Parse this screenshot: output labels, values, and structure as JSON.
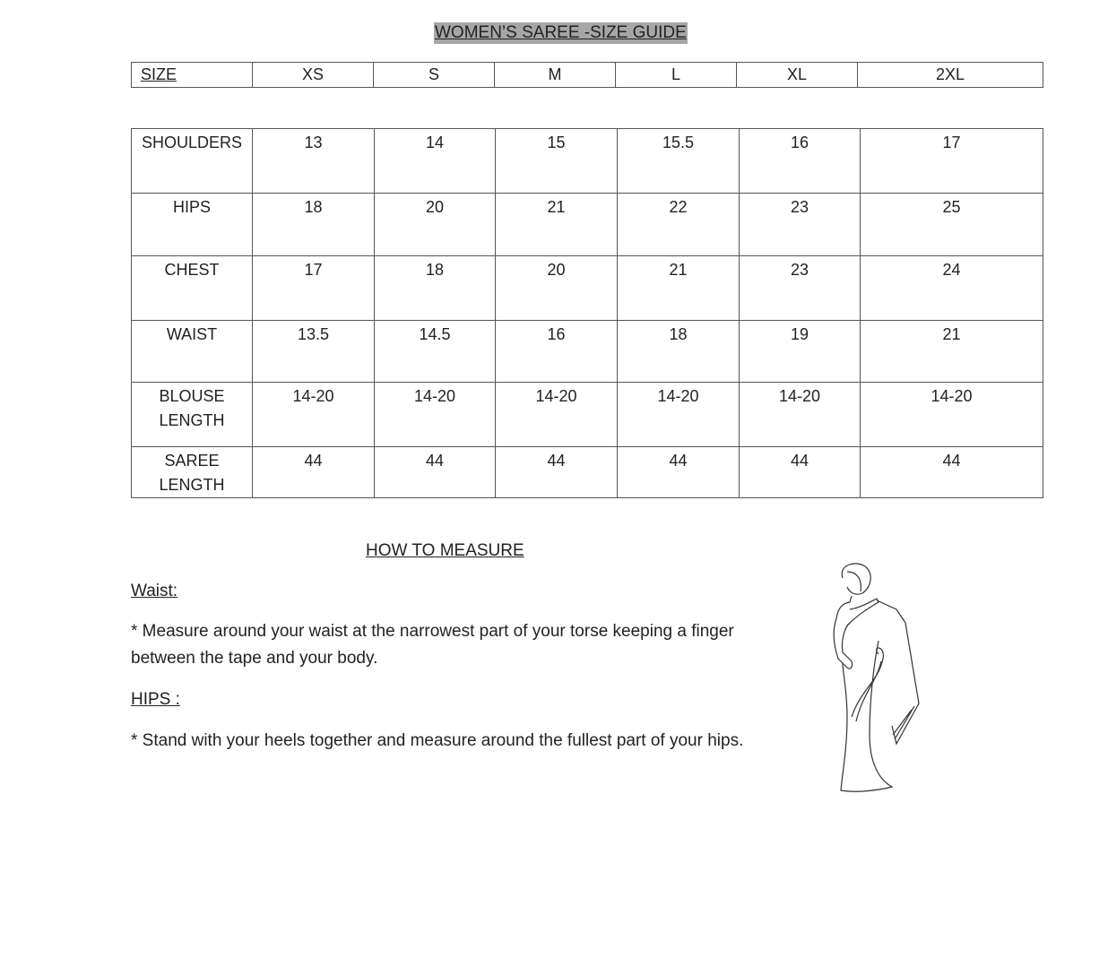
{
  "title": "WOMEN’S SAREE -SIZE GUIDE",
  "size_header": {
    "label": "SIZE",
    "sizes": [
      "XS",
      "S",
      "M",
      "L",
      "XL",
      "2XL"
    ]
  },
  "measurements": [
    {
      "label": "SHOULDERS",
      "values": [
        "13",
        "14",
        "15",
        "15.5",
        "16",
        "17"
      ]
    },
    {
      "label": "HIPS",
      "values": [
        "18",
        "20",
        "21",
        "22",
        "23",
        "25"
      ]
    },
    {
      "label": "CHEST",
      "values": [
        "17",
        "18",
        "20",
        "21",
        "23",
        "24"
      ]
    },
    {
      "label": "WAIST",
      "values": [
        "13.5",
        "14.5",
        "16",
        "18",
        "19",
        "21"
      ]
    },
    {
      "label": "BLOUSE LENGTH",
      "values": [
        "14-20",
        "14-20",
        "14-20",
        "14-20",
        "14-20",
        "14-20"
      ]
    },
    {
      "label": "SAREE LENGTH",
      "values": [
        "44",
        "44",
        "44",
        "44",
        "44",
        "44"
      ]
    }
  ],
  "how_to": {
    "heading": "HOW TO MEASURE",
    "waist_heading": "Waist:",
    "waist_text": "* Measure around your waist at the narrowest part of your torse keeping a finger between the tape and your body.",
    "hips_heading": "HIPS :",
    "hips_text": "* Stand with your heels together and measure around the fullest part of your hips."
  }
}
